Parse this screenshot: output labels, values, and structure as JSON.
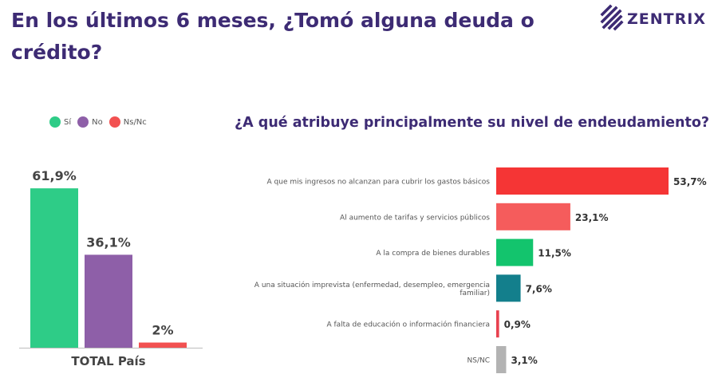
{
  "header": {
    "title": "En los últimos 6 meses, ¿Tomó alguna deuda o crédito?",
    "logo_text": "ZENTRIX"
  },
  "legend": [
    {
      "label": "Sí",
      "color": "#2ecc87"
    },
    {
      "label": "No",
      "color": "#8e5fa8"
    },
    {
      "label": "Ns/Nc",
      "color": "#f25151"
    }
  ],
  "chart_data": [
    {
      "type": "bar",
      "title": "",
      "categories": [
        "Sí",
        "No",
        "Ns/Nc"
      ],
      "values": [
        61.9,
        36.1,
        2
      ],
      "value_labels": [
        "61,9%",
        "36,1%",
        "2%"
      ],
      "colors": [
        "#2ecc87",
        "#8e5fa8",
        "#f25151"
      ],
      "xlabel": "TOTAL País",
      "ylim": [
        0,
        70
      ],
      "grid": false,
      "legend": "top-left"
    },
    {
      "type": "bar",
      "orientation": "horizontal",
      "title": "¿A qué atribuye principalmente su nivel de endeudamiento?",
      "categories": [
        "A que mis ingresos no alcanzan para cubrir los gastos básicos",
        "Al aumento de tarifas y servicios públicos",
        "A la compra de bienes durables",
        "A una situación imprevista (enfermedad, desempleo, emergencia familiar)",
        "A falta de educación o información financiera",
        "NS/NC"
      ],
      "category_lines": [
        [
          "A que mis ingresos no alcanzan para cubrir los gastos básicos"
        ],
        [
          "Al aumento de tarifas y servicios públicos"
        ],
        [
          "A la compra de bienes durables"
        ],
        [
          "A una situación imprevista (enfermedad, desempleo, emergencia",
          "familiar)"
        ],
        [
          "A falta de educación o información financiera"
        ],
        [
          "NS/NC"
        ]
      ],
      "values": [
        53.7,
        23.1,
        11.5,
        7.6,
        0.9,
        3.1
      ],
      "value_labels": [
        "53,7%",
        "23,1%",
        "11,5%",
        "7,6%",
        "0,9%",
        "3,1%"
      ],
      "colors": [
        "#f53535",
        "#f55c5c",
        "#13c46d",
        "#137f8c",
        "#e8414f",
        "#b3b3b3"
      ],
      "xlim": [
        0,
        53.7
      ],
      "grid": false
    }
  ]
}
